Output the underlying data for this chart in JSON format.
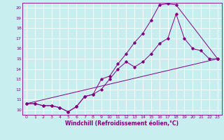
{
  "xlabel": "Windchill (Refroidissement éolien,°C)",
  "bg_color": "#c8eef0",
  "grid_color": "#ffffff",
  "line_color": "#800080",
  "spine_color": "#800080",
  "xlim": [
    -0.5,
    23.5
  ],
  "ylim": [
    9.5,
    20.5
  ],
  "xticks": [
    0,
    1,
    2,
    3,
    4,
    5,
    6,
    7,
    8,
    9,
    10,
    11,
    12,
    13,
    14,
    15,
    16,
    17,
    18,
    19,
    20,
    21,
    22,
    23
  ],
  "yticks": [
    10,
    11,
    12,
    13,
    14,
    15,
    16,
    17,
    18,
    19,
    20
  ],
  "line1_x": [
    0,
    1,
    2,
    3,
    4,
    5,
    6,
    7,
    8,
    9,
    10,
    11,
    12,
    13,
    14,
    15,
    16,
    17,
    18,
    23
  ],
  "line1_y": [
    10.6,
    10.6,
    10.4,
    10.4,
    10.2,
    9.8,
    10.3,
    11.3,
    11.5,
    13.0,
    13.3,
    14.5,
    15.5,
    16.6,
    17.5,
    18.8,
    20.3,
    20.4,
    20.3,
    15.0
  ],
  "line2_x": [
    0,
    1,
    2,
    3,
    4,
    5,
    6,
    7,
    8,
    9,
    10,
    11,
    12,
    13,
    14,
    15,
    16,
    17,
    18,
    19,
    20,
    21,
    22,
    23
  ],
  "line2_y": [
    10.6,
    10.6,
    10.4,
    10.4,
    10.2,
    9.8,
    10.3,
    11.3,
    11.5,
    12.0,
    13.0,
    14.0,
    14.7,
    14.2,
    14.7,
    15.5,
    16.5,
    17.0,
    19.4,
    17.0,
    16.0,
    15.8,
    15.0,
    15.0
  ],
  "line3_x": [
    0,
    23
  ],
  "line3_y": [
    10.6,
    15.0
  ],
  "tick_fontsize": 4.5,
  "xlabel_fontsize": 5.5,
  "xlabel_fontweight": "bold"
}
